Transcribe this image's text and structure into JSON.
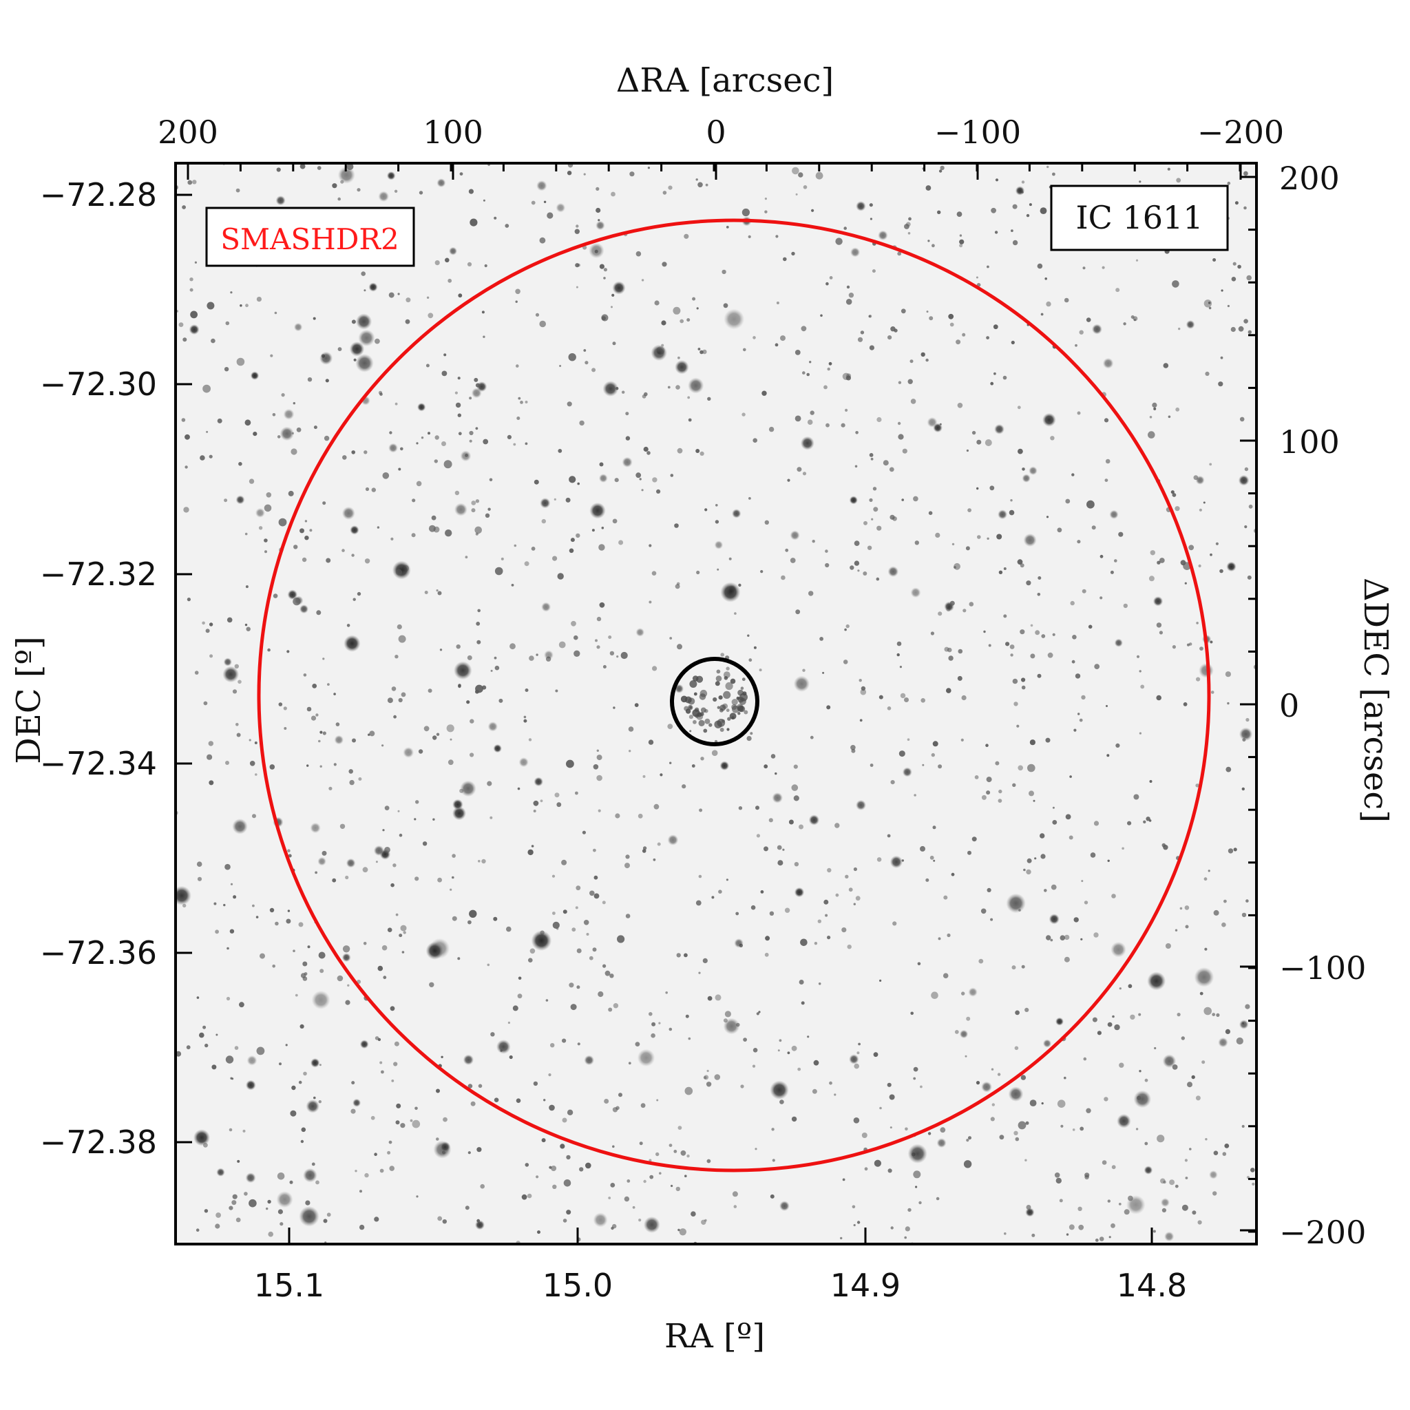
{
  "figure": {
    "survey_label": "SMASHDR2",
    "object_label": "IC 1611",
    "colors": {
      "survey_label": "#ff1a1a",
      "outer_circle": "#ee1111",
      "inner_circle": "#000000",
      "sky_background": "#f2f2f2",
      "star": "#3a3a3a"
    }
  },
  "axes": {
    "top": {
      "title": "ΔRA [arcsec]",
      "ticks": [
        "200",
        "100",
        "0",
        "−100",
        "−200"
      ]
    },
    "bottom": {
      "title": "RA [º]",
      "ticks": [
        "15.1",
        "15.0",
        "14.9",
        "14.8"
      ]
    },
    "left": {
      "title": "DEC [º]",
      "ticks": [
        "−72.28",
        "−72.30",
        "−72.32",
        "−72.34",
        "−72.36",
        "−72.38"
      ]
    },
    "right": {
      "title": "ΔDEC [arcsec]",
      "ticks": [
        "200",
        "100",
        "0",
        "−100",
        "−200"
      ]
    }
  }
}
